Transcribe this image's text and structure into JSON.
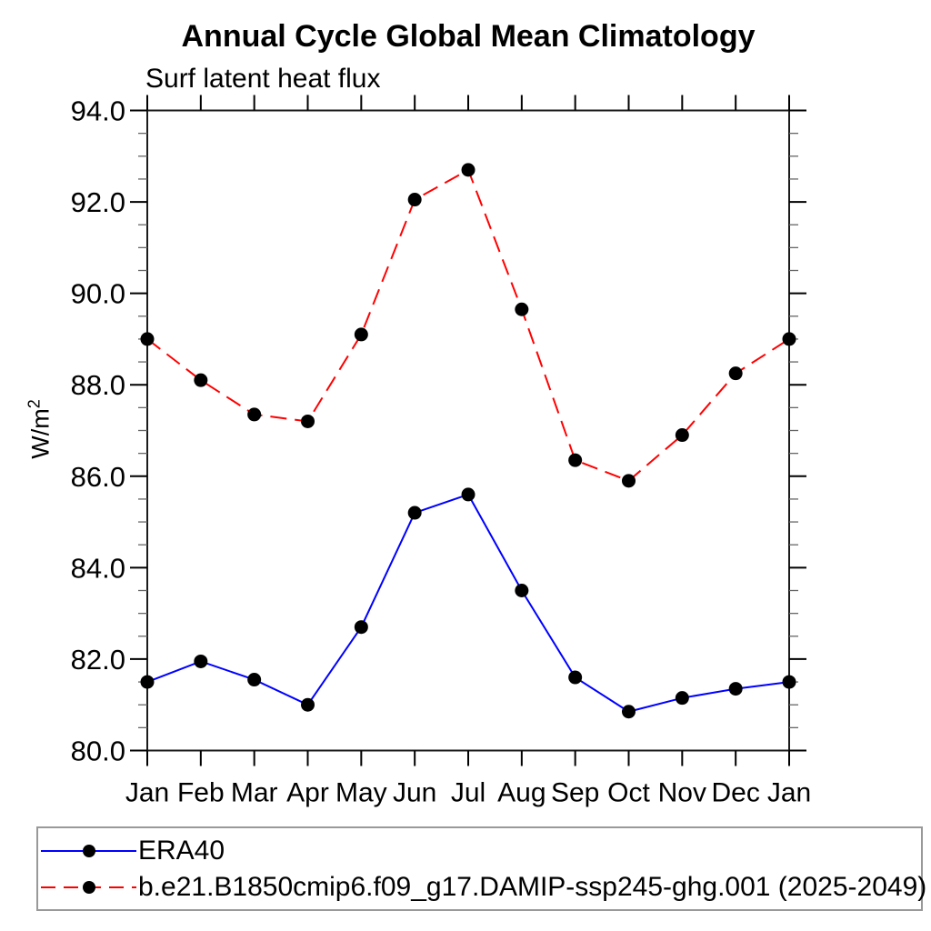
{
  "chart_data": {
    "type": "line",
    "title": "Annual Cycle Global Mean Climatology",
    "subtitle": "Surf latent heat flux",
    "ylabel_base": "W/m",
    "ylabel_sup": "2",
    "x_categories": [
      "Jan",
      "Feb",
      "Mar",
      "Apr",
      "May",
      "Jun",
      "Jul",
      "Aug",
      "Sep",
      "Oct",
      "Nov",
      "Dec",
      "Jan"
    ],
    "ylim": [
      80.0,
      94.0
    ],
    "y_major_step": 2.0,
    "y_minor_step": 0.5,
    "y_tick_decimals": 1,
    "grid": false,
    "legend_position": "bottom-left-box",
    "marker": {
      "shape": "circle",
      "color": "#000000"
    },
    "axis_color": "#1a1a1a",
    "series": [
      {
        "name": "ERA40",
        "color": "#0000ff",
        "line_style": "solid",
        "values": [
          81.5,
          81.95,
          81.55,
          81.0,
          82.7,
          85.2,
          85.6,
          83.5,
          81.6,
          80.85,
          81.15,
          81.35,
          81.5
        ]
      },
      {
        "name": "b.e21.B1850cmip6.f09_g17.DAMIP-ssp245-ghg.001 (2025-2049)",
        "color": "#ff0000",
        "line_style": "dashed",
        "values": [
          89.0,
          88.1,
          87.35,
          87.2,
          89.1,
          92.05,
          92.7,
          89.65,
          86.35,
          85.9,
          86.9,
          88.25,
          89.0
        ]
      }
    ]
  }
}
